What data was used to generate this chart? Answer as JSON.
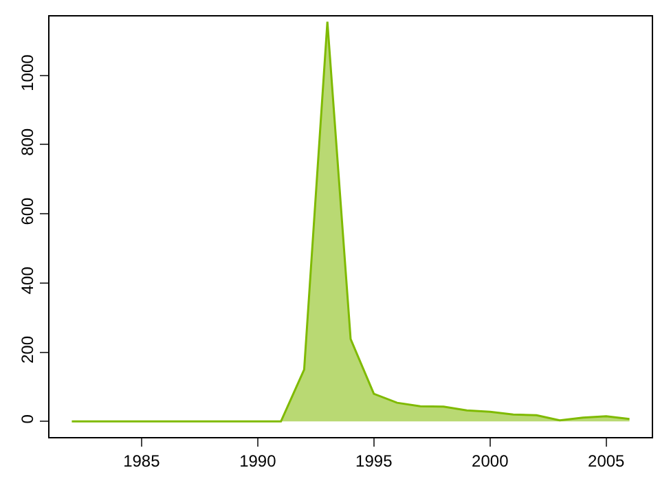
{
  "chart_data": {
    "type": "area",
    "x": [
      1982,
      1983,
      1984,
      1985,
      1986,
      1987,
      1988,
      1989,
      1990,
      1991,
      1992,
      1993,
      1994,
      1995,
      1996,
      1997,
      1998,
      1999,
      2000,
      2001,
      2002,
      2003,
      2004,
      2005,
      2006
    ],
    "series": [
      {
        "color": "#7fba00",
        "values": [
          0,
          0,
          0,
          0,
          0,
          0,
          0,
          0,
          0,
          0,
          150,
          1155,
          238,
          80,
          54,
          44,
          43,
          32,
          28,
          20,
          18,
          3,
          11,
          15,
          7
        ]
      }
    ],
    "xlim": [
      1981.04,
      2006.96
    ],
    "ylim": [
      -45,
      1170
    ],
    "xticks": [
      1985,
      1990,
      1995,
      2000,
      2005
    ],
    "yticks": [
      0,
      200,
      400,
      600,
      800,
      1000
    ],
    "grid": false
  }
}
